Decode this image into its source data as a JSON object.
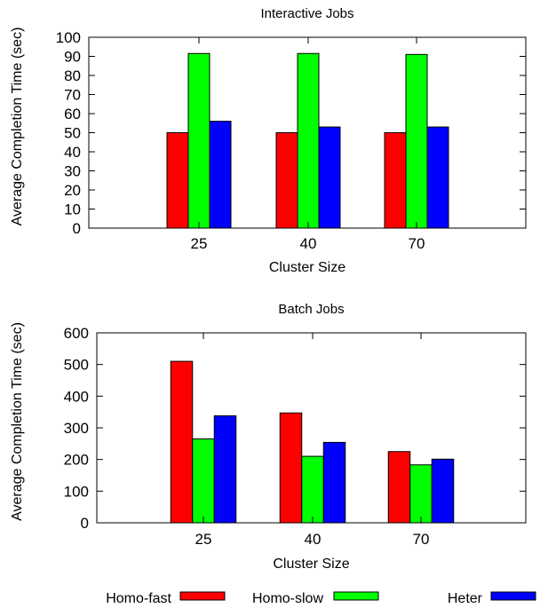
{
  "chart_data": [
    {
      "type": "bar",
      "title": "Interactive Jobs",
      "xlabel": "Cluster Size",
      "ylabel": "Average Completion Time (sec)",
      "categories": [
        "25",
        "40",
        "70"
      ],
      "ylim": [
        0,
        100
      ],
      "yticks": [
        0,
        10,
        20,
        30,
        40,
        50,
        60,
        70,
        80,
        90,
        100
      ],
      "grid": false,
      "series": [
        {
          "name": "Homo-fast",
          "color": "#ff0000",
          "values": [
            50,
            50,
            50
          ]
        },
        {
          "name": "Homo-slow",
          "color": "#00ff00",
          "values": [
            91.5,
            91.5,
            91
          ]
        },
        {
          "name": "Heter",
          "color": "#0000ff",
          "values": [
            56,
            53,
            53
          ]
        }
      ]
    },
    {
      "type": "bar",
      "title": "Batch Jobs",
      "xlabel": "Cluster Size",
      "ylabel": "Average Completion Time (sec)",
      "categories": [
        "25",
        "40",
        "70"
      ],
      "ylim": [
        0,
        600
      ],
      "yticks": [
        0,
        100,
        200,
        300,
        400,
        500,
        600
      ],
      "grid": false,
      "series": [
        {
          "name": "Homo-fast",
          "color": "#ff0000",
          "values": [
            510,
            347,
            225
          ]
        },
        {
          "name": "Homo-slow",
          "color": "#00ff00",
          "values": [
            265,
            210,
            183
          ]
        },
        {
          "name": "Heter",
          "color": "#0000ff",
          "values": [
            338,
            254,
            201
          ]
        }
      ]
    }
  ],
  "legend": {
    "placement": "bottom",
    "entries": [
      {
        "label": "Homo-fast",
        "color": "#ff0000"
      },
      {
        "label": "Homo-slow",
        "color": "#00ff00"
      },
      {
        "label": "Heter",
        "color": "#0000ff"
      }
    ]
  }
}
